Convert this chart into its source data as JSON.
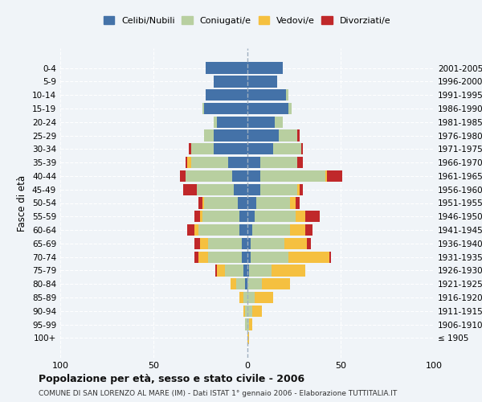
{
  "age_groups": [
    "100+",
    "95-99",
    "90-94",
    "85-89",
    "80-84",
    "75-79",
    "70-74",
    "65-69",
    "60-64",
    "55-59",
    "50-54",
    "45-49",
    "40-44",
    "35-39",
    "30-34",
    "25-29",
    "20-24",
    "15-19",
    "10-14",
    "5-9",
    "0-4"
  ],
  "birth_years": [
    "≤ 1905",
    "1906-1910",
    "1911-1915",
    "1916-1920",
    "1921-1925",
    "1926-1930",
    "1931-1935",
    "1936-1940",
    "1941-1945",
    "1946-1950",
    "1951-1955",
    "1956-1960",
    "1961-1965",
    "1966-1970",
    "1971-1975",
    "1976-1980",
    "1981-1985",
    "1986-1990",
    "1991-1995",
    "1996-2000",
    "2001-2005"
  ],
  "colors": {
    "celibi": "#4472a8",
    "coniugati": "#b8cfa0",
    "vedovi": "#f5c040",
    "divorziati": "#c0282a"
  },
  "maschi": {
    "celibi": [
      0,
      0,
      0,
      0,
      1,
      2,
      3,
      3,
      4,
      4,
      5,
      7,
      8,
      10,
      18,
      18,
      16,
      23,
      22,
      18,
      22
    ],
    "coniugati": [
      0,
      1,
      1,
      2,
      5,
      10,
      18,
      18,
      22,
      20,
      18,
      20,
      25,
      20,
      12,
      5,
      2,
      1,
      0,
      0,
      0
    ],
    "vedovi": [
      0,
      0,
      1,
      2,
      3,
      4,
      5,
      4,
      2,
      1,
      1,
      0,
      0,
      2,
      0,
      0,
      0,
      0,
      0,
      0,
      0
    ],
    "divorziati": [
      0,
      0,
      0,
      0,
      0,
      1,
      2,
      3,
      4,
      3,
      2,
      7,
      3,
      1,
      1,
      0,
      0,
      0,
      0,
      0,
      0
    ]
  },
  "femmine": {
    "celibi": [
      0,
      0,
      0,
      0,
      0,
      1,
      2,
      2,
      3,
      4,
      5,
      7,
      7,
      7,
      14,
      17,
      15,
      22,
      21,
      16,
      19
    ],
    "coniugati": [
      0,
      1,
      3,
      4,
      8,
      12,
      20,
      18,
      20,
      22,
      18,
      20,
      35,
      20,
      15,
      10,
      4,
      2,
      1,
      0,
      0
    ],
    "vedovi": [
      1,
      2,
      5,
      10,
      15,
      18,
      22,
      12,
      8,
      5,
      3,
      1,
      1,
      0,
      0,
      0,
      0,
      0,
      0,
      0,
      0
    ],
    "divorziati": [
      0,
      0,
      0,
      0,
      0,
      0,
      1,
      2,
      4,
      8,
      2,
      2,
      8,
      3,
      1,
      1,
      0,
      0,
      0,
      0,
      0
    ]
  },
  "xlim": [
    -100,
    100
  ],
  "xticks": [
    -100,
    -50,
    0,
    50,
    100
  ],
  "xticklabels": [
    "100",
    "50",
    "0",
    "50",
    "100"
  ],
  "title": "Popolazione per età, sesso e stato civile - 2006",
  "subtitle": "COMUNE DI SAN LORENZO AL MARE (IM) - Dati ISTAT 1° gennaio 2006 - Elaborazione TUTTITALIA.IT",
  "ylabel_left": "Fasce di età",
  "legend_labels": [
    "Celibi/Nubili",
    "Coniugati/e",
    "Vedovi/e",
    "Divorziati/e"
  ],
  "bg_color": "#f0f4f8",
  "bar_height": 0.85
}
